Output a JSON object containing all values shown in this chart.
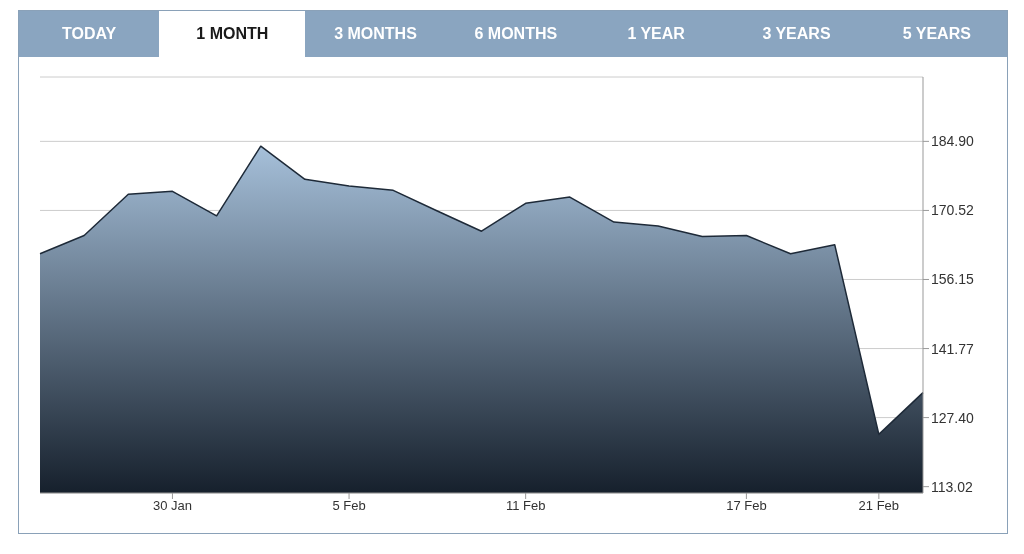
{
  "chart_data": {
    "type": "area",
    "categories": [
      null,
      null,
      null,
      "30 Jan",
      null,
      null,
      null,
      "5 Feb",
      null,
      null,
      null,
      "11 Feb",
      null,
      null,
      null,
      null,
      "17 Feb",
      null,
      null,
      "21 Feb",
      null
    ],
    "series": [
      {
        "color": "#1e2a38",
        "values": [
          161.5,
          165.3,
          173.9,
          174.5,
          169.4,
          183.9,
          177.0,
          175.6,
          174.7,
          170.4,
          166.2,
          172.0,
          173.3,
          168.1,
          167.3,
          165.1,
          165.3,
          161.5,
          163.4,
          123.9,
          132.6
        ]
      }
    ],
    "ylim": [
      111.7,
      198.3
    ],
    "yticks": [
      113.02,
      {
        "value": 127.4,
        "label": "127.40"
      },
      141.77,
      156.15,
      170.52,
      {
        "value": 184.9,
        "label": "184.90"
      }
    ],
    "grid": "y",
    "marker": "none",
    "line_style": "solid",
    "annotations": [
      "TODAY",
      "1 MONTH",
      "3 MONTHS",
      "6 MONTHS",
      "1 YEAR",
      "3 YEARS",
      "5 YEARS"
    ]
  }
}
